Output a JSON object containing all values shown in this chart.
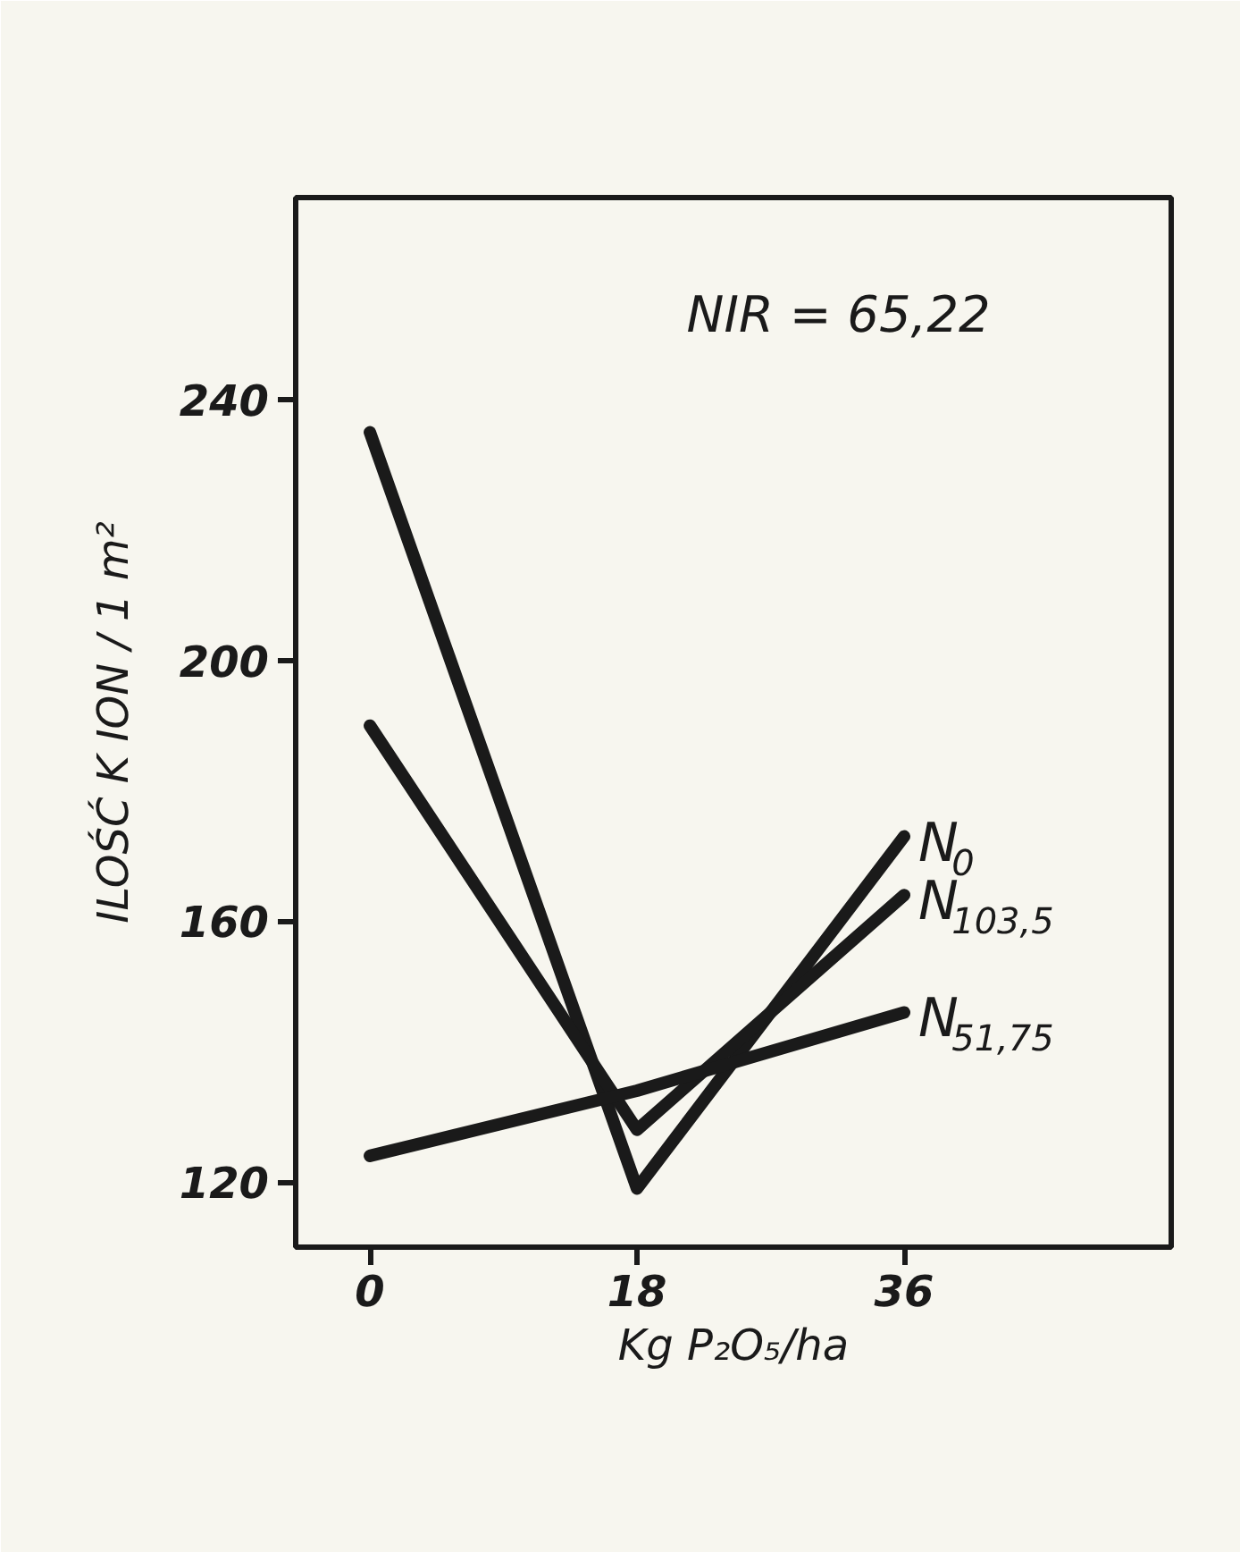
{
  "chart_data": {
    "type": "line",
    "x": [
      0,
      18,
      36
    ],
    "xlim": [
      -5,
      54
    ],
    "xticks": [
      0,
      18,
      36
    ],
    "ylim": [
      110,
      271
    ],
    "yticks": [
      120,
      160,
      200,
      240
    ],
    "xlabel": "Kg P₂O₅/ha",
    "ylabel": "ILOŚĆ K ION / 1 m²",
    "annotations": [
      "NIR = 65,22"
    ],
    "series": [
      {
        "name": "N$_{0}$",
        "color": "#1a1a1a",
        "values": [
          235,
          119,
          173
        ]
      },
      {
        "name": "N$_{103,5}$",
        "color": "#1a1a1a",
        "values": [
          190,
          128,
          164
        ]
      },
      {
        "name": "N$_{51,75}$",
        "color": "#1a1a1a",
        "values": [
          124,
          134,
          146
        ]
      }
    ],
    "grid": false,
    "marker": "none",
    "line_style": "solid"
  }
}
